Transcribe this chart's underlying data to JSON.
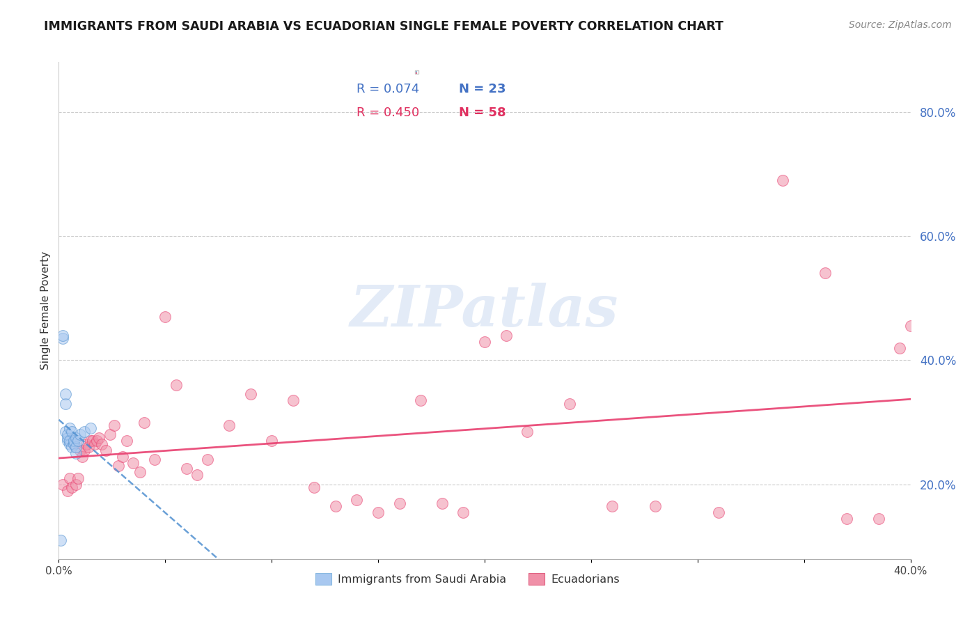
{
  "title": "IMMIGRANTS FROM SAUDI ARABIA VS ECUADORIAN SINGLE FEMALE POVERTY CORRELATION CHART",
  "source": "Source: ZipAtlas.com",
  "ylabel_label": "Single Female Poverty",
  "xlim": [
    0.0,
    0.4
  ],
  "ylim": [
    0.08,
    0.88
  ],
  "legend1_r": "R = 0.074",
  "legend1_n": "N = 23",
  "legend2_r": "R = 0.450",
  "legend2_n": "N = 58",
  "color_blue": "#a8c8f0",
  "color_pink": "#f090a8",
  "trendline_blue_color": "#5090d0",
  "trendline_pink_color": "#e84070",
  "watermark_text": "ZIPatlas",
  "watermark_color": "#c8d8f0",
  "saudi_x": [
    0.001,
    0.002,
    0.002,
    0.003,
    0.003,
    0.003,
    0.004,
    0.004,
    0.004,
    0.005,
    0.005,
    0.005,
    0.006,
    0.006,
    0.007,
    0.007,
    0.008,
    0.008,
    0.008,
    0.009,
    0.01,
    0.012,
    0.015
  ],
  "saudi_y": [
    0.11,
    0.435,
    0.44,
    0.285,
    0.33,
    0.345,
    0.27,
    0.275,
    0.28,
    0.265,
    0.27,
    0.29,
    0.26,
    0.285,
    0.265,
    0.27,
    0.25,
    0.26,
    0.275,
    0.27,
    0.28,
    0.285,
    0.29
  ],
  "ecuadorian_x": [
    0.002,
    0.004,
    0.005,
    0.006,
    0.007,
    0.008,
    0.009,
    0.01,
    0.011,
    0.012,
    0.013,
    0.014,
    0.015,
    0.016,
    0.017,
    0.018,
    0.019,
    0.02,
    0.022,
    0.024,
    0.026,
    0.028,
    0.03,
    0.032,
    0.035,
    0.038,
    0.04,
    0.045,
    0.05,
    0.055,
    0.06,
    0.065,
    0.07,
    0.08,
    0.09,
    0.1,
    0.11,
    0.12,
    0.13,
    0.14,
    0.15,
    0.16,
    0.17,
    0.18,
    0.19,
    0.2,
    0.21,
    0.22,
    0.24,
    0.26,
    0.28,
    0.31,
    0.34,
    0.36,
    0.37,
    0.385,
    0.395,
    0.4
  ],
  "ecuadorian_y": [
    0.2,
    0.19,
    0.21,
    0.195,
    0.265,
    0.2,
    0.21,
    0.255,
    0.245,
    0.255,
    0.265,
    0.26,
    0.27,
    0.27,
    0.265,
    0.27,
    0.275,
    0.265,
    0.255,
    0.28,
    0.295,
    0.23,
    0.245,
    0.27,
    0.235,
    0.22,
    0.3,
    0.24,
    0.47,
    0.36,
    0.225,
    0.215,
    0.24,
    0.295,
    0.345,
    0.27,
    0.335,
    0.195,
    0.165,
    0.175,
    0.155,
    0.17,
    0.335,
    0.17,
    0.155,
    0.43,
    0.44,
    0.285,
    0.33,
    0.165,
    0.165,
    0.155,
    0.69,
    0.54,
    0.145,
    0.145,
    0.42,
    0.455
  ],
  "grid_yticks": [
    0.2,
    0.4,
    0.6,
    0.8
  ],
  "right_yticklabels": [
    "20.0%",
    "40.0%",
    "60.0%",
    "80.0%"
  ],
  "xticks": [
    0.0,
    0.05,
    0.1,
    0.15,
    0.2,
    0.25,
    0.3,
    0.35,
    0.4
  ],
  "xticklabels": [
    "0.0%",
    "",
    "",
    "",
    "",
    "",
    "",
    "",
    "40.0%"
  ]
}
